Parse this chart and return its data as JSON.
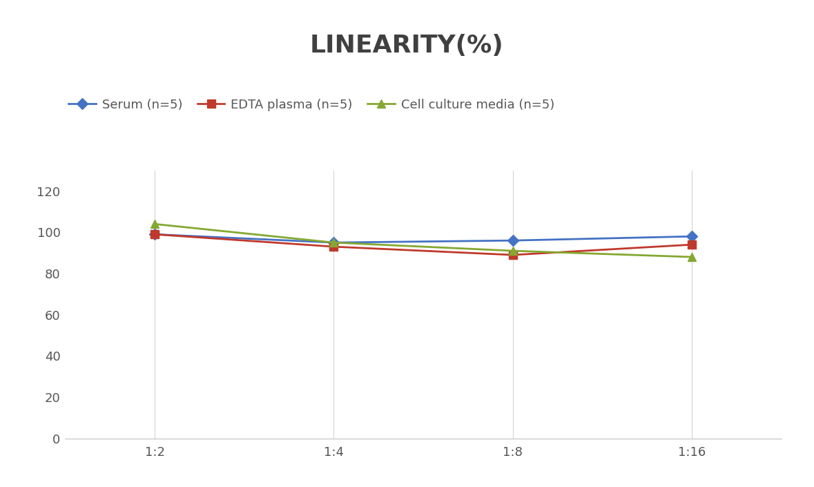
{
  "title": "LINEARITY(%)",
  "x_labels": [
    "1:2",
    "1:4",
    "1:8",
    "1:16"
  ],
  "series": [
    {
      "name": "Serum (n=5)",
      "values": [
        99,
        95,
        96,
        98
      ],
      "color": "#4472C4",
      "marker": "D",
      "marker_size": 8
    },
    {
      "name": "EDTA plasma (n=5)",
      "values": [
        99,
        93,
        89,
        94
      ],
      "color": "#C0392B",
      "marker": "s",
      "marker_size": 8
    },
    {
      "name": "Cell culture media (n=5)",
      "values": [
        104,
        95,
        91,
        88
      ],
      "color": "#84A832",
      "marker": "^",
      "marker_size": 8
    }
  ],
  "ylim": [
    0,
    130
  ],
  "yticks": [
    0,
    20,
    40,
    60,
    80,
    100,
    120
  ],
  "background_color": "#ffffff",
  "grid_color": "#d4d4d4",
  "title_fontsize": 26,
  "legend_fontsize": 13,
  "tick_fontsize": 13,
  "line_width": 2.0,
  "title_color": "#404040"
}
